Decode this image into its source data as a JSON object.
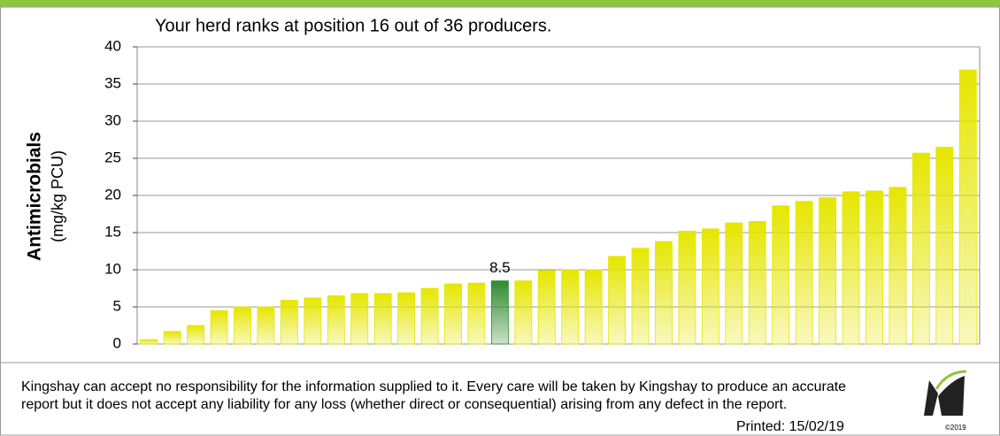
{
  "chart_data": {
    "type": "bar",
    "title": "Your herd ranks at position 16 out of 36 producers.",
    "y_label": "Antimicrobials",
    "y_sublabel": "(mg/kg PCU)",
    "values": [
      0.6,
      1.7,
      2.5,
      4.5,
      5.0,
      5.0,
      5.9,
      6.2,
      6.5,
      6.8,
      6.8,
      6.9,
      7.5,
      8.1,
      8.2,
      8.5,
      8.5,
      9.9,
      10.0,
      10.0,
      11.8,
      12.9,
      13.8,
      15.2,
      15.5,
      16.3,
      16.5,
      18.6,
      19.2,
      19.7,
      20.5,
      20.6,
      21.1,
      25.7,
      26.5,
      36.9
    ],
    "color": "#e6e600",
    "colors": [
      "#e6e600",
      "#e6e600",
      "#e6e600",
      "#e6e600",
      "#e6e600",
      "#e6e600",
      "#e6e600",
      "#e6e600",
      "#e6e600",
      "#e6e600",
      "#e6e600",
      "#e6e600",
      "#e6e600",
      "#e6e600",
      "#e6e600",
      "#2e8b2e",
      "#e6e600",
      "#e6e600",
      "#e6e600",
      "#e6e600",
      "#e6e600",
      "#e6e600",
      "#e6e600",
      "#e6e600",
      "#e6e600",
      "#e6e600",
      "#e6e600",
      "#e6e600",
      "#e6e600",
      "#e6e600",
      "#e6e600",
      "#e6e600",
      "#e6e600",
      "#e6e600",
      "#e6e600",
      "#e6e600"
    ],
    "ylim": [
      0,
      40
    ],
    "yticks": [
      0,
      5,
      10,
      15,
      20,
      25,
      30,
      35,
      40
    ],
    "grid": true
  },
  "footer": {
    "disclaimer": "Kingshay can accept no responsibility for the information supplied to it.  Every care will be taken by Kingshay to produce an accurate report but it does not accept any liability for any loss (whether direct or consequential) arising from any defect in the report.",
    "printed": "Printed: 15/02/19",
    "logo_text": "©2019"
  }
}
